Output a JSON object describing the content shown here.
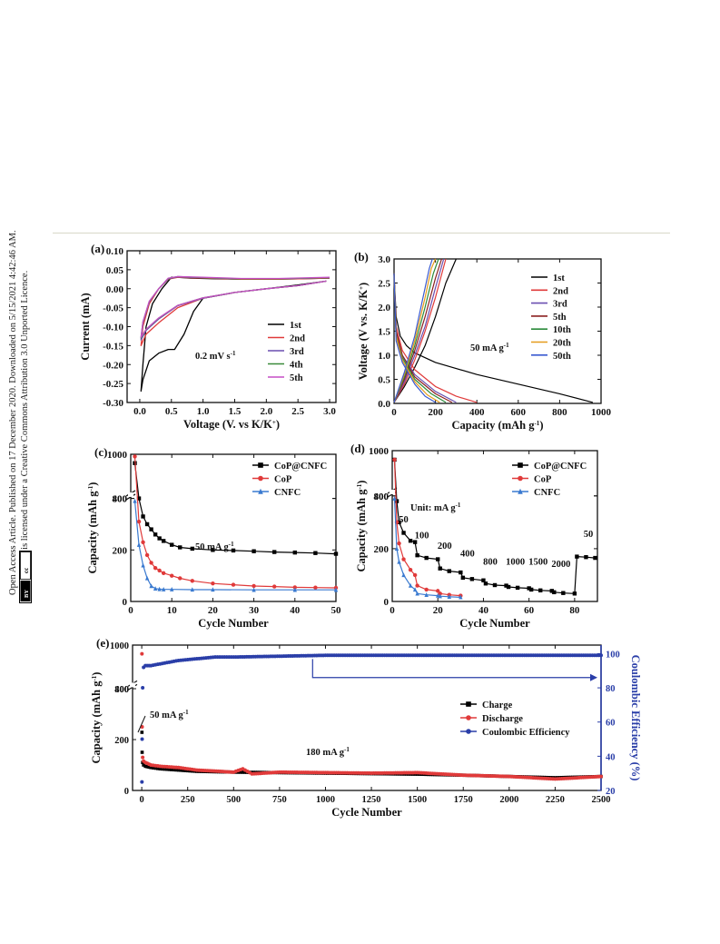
{
  "notice": {
    "line1": "Open Access Article. Published on 17 December 2020. Downloaded on 5/15/2021 4:42:46 AM.",
    "line2": "This article is licensed under a Creative Commons Attribution 3.0 Unported Licence.",
    "cc_badge": "cc",
    "by_badge": "BY"
  },
  "chart_data": [
    {
      "panel": "(a)",
      "type": "line",
      "xlabel": "Voltage (V. vs K/K+)",
      "ylabel": "Current (mA)",
      "xlim": [
        -0.2,
        3.1
      ],
      "ylim": [
        -0.3,
        0.1
      ],
      "xticks": [
        "0.0",
        "0.5",
        "1.0",
        "1.5",
        "2.0",
        "2.5",
        "3.0"
      ],
      "yticks": [
        "0.10",
        "0.05",
        "0.00",
        "-0.05",
        "-0.10",
        "-0.15",
        "-0.20",
        "-0.25",
        "-0.30"
      ],
      "annotation": "0.2 mV s-1",
      "legend": "right",
      "series": [
        {
          "name": "1st",
          "color": "#000000",
          "x": [
            2.95,
            2.5,
            2.0,
            1.5,
            1.0,
            0.85,
            0.7,
            0.55,
            0.45,
            0.3,
            0.15,
            0.05,
            0.02,
            0.05,
            0.1,
            0.2,
            0.35,
            0.5,
            0.6,
            0.8,
            1.2,
            1.8,
            2.5,
            3.0
          ],
          "y": [
            0.02,
            0.01,
            0.0,
            -0.01,
            -0.025,
            -0.06,
            -0.12,
            -0.16,
            -0.16,
            -0.17,
            -0.19,
            -0.24,
            -0.27,
            -0.2,
            -0.1,
            -0.04,
            0.0,
            0.03,
            0.03,
            0.028,
            0.026,
            0.025,
            0.026,
            0.028
          ]
        },
        {
          "name": "2nd",
          "color": "#e03a3a",
          "x": [
            2.95,
            2.5,
            2.0,
            1.5,
            1.0,
            0.6,
            0.3,
            0.1,
            0.02,
            0.05,
            0.15,
            0.3,
            0.45,
            0.6,
            1.0,
            1.6,
            2.2,
            3.0
          ],
          "y": [
            0.02,
            0.008,
            0.0,
            -0.01,
            -0.025,
            -0.05,
            -0.09,
            -0.12,
            -0.15,
            -0.1,
            -0.04,
            0.0,
            0.025,
            0.03,
            0.028,
            0.025,
            0.025,
            0.028
          ]
        },
        {
          "name": "3rd",
          "color": "#6a4fb0",
          "x": [
            2.95,
            2.5,
            2.0,
            1.5,
            1.0,
            0.6,
            0.3,
            0.1,
            0.02,
            0.05,
            0.15,
            0.3,
            0.45,
            0.6,
            1.0,
            1.6,
            2.2,
            3.0
          ],
          "y": [
            0.02,
            0.008,
            0.0,
            -0.01,
            -0.025,
            -0.045,
            -0.08,
            -0.11,
            -0.135,
            -0.09,
            -0.035,
            0.0,
            0.026,
            0.031,
            0.029,
            0.026,
            0.026,
            0.029
          ]
        },
        {
          "name": "4th",
          "color": "#3a8a3a",
          "x": [
            2.95,
            2.5,
            2.0,
            1.5,
            1.0,
            0.6,
            0.3,
            0.1,
            0.02,
            0.05,
            0.15,
            0.3,
            0.45,
            0.6,
            1.0,
            1.6,
            2.2,
            3.0
          ],
          "y": [
            0.02,
            0.008,
            0.0,
            -0.01,
            -0.024,
            -0.044,
            -0.078,
            -0.108,
            -0.13,
            -0.088,
            -0.034,
            0.0,
            0.027,
            0.032,
            0.029,
            0.026,
            0.026,
            0.029
          ]
        },
        {
          "name": "5th",
          "color": "#c54fc5",
          "x": [
            2.95,
            2.5,
            2.0,
            1.5,
            1.0,
            0.6,
            0.3,
            0.1,
            0.02,
            0.05,
            0.15,
            0.3,
            0.45,
            0.6,
            1.0,
            1.6,
            2.2,
            3.0
          ],
          "y": [
            0.02,
            0.008,
            0.0,
            -0.01,
            -0.024,
            -0.044,
            -0.077,
            -0.107,
            -0.128,
            -0.087,
            -0.033,
            0.0,
            0.028,
            0.032,
            0.03,
            0.027,
            0.027,
            0.03
          ]
        }
      ]
    },
    {
      "panel": "(b)",
      "type": "line",
      "xlabel": "Capacity (mAh g-1)",
      "ylabel": "Voltage (V vs. K/K+)",
      "xlim": [
        0,
        1000
      ],
      "ylim": [
        0,
        3.0
      ],
      "xticks": [
        "0",
        "200",
        "400",
        "600",
        "800",
        "1000"
      ],
      "yticks": [
        "0.0",
        "0.5",
        "1.0",
        "1.5",
        "2.0",
        "2.5",
        "3.0"
      ],
      "annotation": "50 mA g-1",
      "legend": "right",
      "series": [
        {
          "name": "1st",
          "color": "#000000",
          "discharge_x": [
            0,
            10,
            30,
            60,
            100,
            200,
            400,
            600,
            800,
            960
          ],
          "discharge_y": [
            2.7,
            1.8,
            1.4,
            1.2,
            1.05,
            0.85,
            0.6,
            0.4,
            0.2,
            0.02
          ],
          "charge_x": [
            0,
            50,
            100,
            150,
            200,
            250,
            300
          ],
          "charge_y": [
            0.02,
            0.35,
            0.75,
            1.2,
            1.8,
            2.5,
            3.0
          ]
        },
        {
          "name": "2nd",
          "color": "#e03a3a",
          "discharge_x": [
            0,
            10,
            40,
            100,
            200,
            300,
            400
          ],
          "discharge_y": [
            2.7,
            1.6,
            1.1,
            0.7,
            0.35,
            0.15,
            0.02
          ],
          "charge_x": [
            0,
            50,
            100,
            150,
            200,
            250
          ],
          "charge_y": [
            0.02,
            0.4,
            0.9,
            1.5,
            2.2,
            3.0
          ]
        },
        {
          "name": "3rd",
          "color": "#6a4fb0",
          "discharge_x": [
            0,
            10,
            40,
            100,
            200,
            300
          ],
          "discharge_y": [
            2.7,
            1.5,
            1.0,
            0.6,
            0.25,
            0.02
          ],
          "charge_x": [
            0,
            50,
            100,
            150,
            200,
            240
          ],
          "charge_y": [
            0.02,
            0.45,
            1.0,
            1.6,
            2.4,
            3.0
          ]
        },
        {
          "name": "5th",
          "color": "#8b2020",
          "discharge_x": [
            0,
            10,
            40,
            100,
            200,
            280
          ],
          "discharge_y": [
            2.7,
            1.5,
            1.0,
            0.55,
            0.2,
            0.02
          ],
          "charge_x": [
            0,
            50,
            100,
            150,
            200,
            230
          ],
          "charge_y": [
            0.02,
            0.5,
            1.1,
            1.8,
            2.6,
            3.0
          ]
        },
        {
          "name": "10th",
          "color": "#2a8a3a",
          "discharge_x": [
            0,
            10,
            40,
            100,
            180,
            250
          ],
          "discharge_y": [
            2.7,
            1.4,
            0.95,
            0.5,
            0.2,
            0.02
          ],
          "charge_x": [
            0,
            50,
            100,
            150,
            190,
            215
          ],
          "charge_y": [
            0.02,
            0.55,
            1.2,
            2.0,
            2.7,
            3.0
          ]
        },
        {
          "name": "20th",
          "color": "#e59a1a",
          "discharge_x": [
            0,
            10,
            40,
            100,
            160,
            220
          ],
          "discharge_y": [
            2.7,
            1.4,
            0.9,
            0.45,
            0.18,
            0.02
          ],
          "charge_x": [
            0,
            50,
            100,
            150,
            180,
            200
          ],
          "charge_y": [
            0.02,
            0.6,
            1.3,
            2.2,
            2.8,
            3.0
          ]
        },
        {
          "name": "50th",
          "color": "#3a5ad0",
          "discharge_x": [
            0,
            10,
            40,
            100,
            150,
            200
          ],
          "discharge_y": [
            2.7,
            1.3,
            0.85,
            0.4,
            0.15,
            0.02
          ],
          "charge_x": [
            0,
            50,
            100,
            140,
            170,
            185
          ],
          "charge_y": [
            0.02,
            0.65,
            1.4,
            2.2,
            2.8,
            3.0
          ]
        }
      ]
    },
    {
      "panel": "(c)",
      "type": "scatter",
      "xlabel": "Cycle Number",
      "ylabel": "Capacity (mAh g-1)",
      "xlim": [
        0,
        50
      ],
      "ylim": [
        0,
        1000
      ],
      "xticks": [
        "0",
        "10",
        "20",
        "30",
        "40",
        "50"
      ],
      "yticks": [
        "0",
        "200",
        "400",
        "800",
        "1000"
      ],
      "annotation": "50 mA g-1",
      "legend": "top-right",
      "series": [
        {
          "name": "CoP@CNFC",
          "color": "#000000",
          "x": [
            1,
            2,
            3,
            4,
            5,
            6,
            7,
            8,
            10,
            12,
            15,
            20,
            25,
            30,
            35,
            40,
            45,
            50
          ],
          "y": [
            960,
            400,
            330,
            300,
            280,
            260,
            245,
            235,
            220,
            210,
            205,
            200,
            198,
            195,
            192,
            190,
            188,
            185
          ]
        },
        {
          "name": "CoP",
          "color": "#e03a3a",
          "x": [
            1,
            2,
            3,
            4,
            5,
            6,
            7,
            8,
            10,
            12,
            15,
            20,
            25,
            30,
            35,
            40,
            45,
            50
          ],
          "y": [
            990,
            310,
            230,
            180,
            150,
            130,
            120,
            110,
            100,
            90,
            80,
            70,
            65,
            60,
            58,
            55,
            54,
            53
          ]
        },
        {
          "name": "CNFC",
          "color": "#3a7ad0",
          "x": [
            1,
            2,
            3,
            4,
            5,
            6,
            7,
            8,
            10,
            15,
            20,
            30,
            40,
            50
          ],
          "y": [
            390,
            220,
            140,
            90,
            60,
            50,
            48,
            47,
            47,
            46,
            46,
            45,
            45,
            45
          ]
        }
      ]
    },
    {
      "panel": "(d)",
      "type": "scatter",
      "xlabel": "Cycle Number",
      "ylabel": "Capacity (mAh g-1)",
      "xlim": [
        0,
        90
      ],
      "ylim": [
        0,
        1000
      ],
      "xticks": [
        "0",
        "20",
        "40",
        "60",
        "80"
      ],
      "yticks": [
        "0",
        "200",
        "400",
        "800",
        "1000"
      ],
      "annotation": "Unit: mA g-1",
      "rate_labels": [
        "50",
        "100",
        "200",
        "400",
        "800",
        "1000",
        "1500",
        "2000",
        "50"
      ],
      "legend": "top-right",
      "series": [
        {
          "name": "CoP@CNFC",
          "color": "#000000",
          "x": [
            1,
            2,
            3,
            5,
            8,
            10,
            11,
            15,
            20,
            21,
            25,
            30,
            31,
            35,
            40,
            41,
            45,
            50,
            51,
            55,
            60,
            61,
            65,
            70,
            71,
            75,
            80,
            81,
            85,
            89
          ],
          "y": [
            960,
            380,
            300,
            260,
            230,
            225,
            175,
            165,
            160,
            125,
            115,
            110,
            90,
            85,
            80,
            68,
            62,
            60,
            55,
            52,
            50,
            45,
            42,
            40,
            35,
            32,
            30,
            170,
            168,
            165
          ]
        },
        {
          "name": "CoP",
          "color": "#e03a3a",
          "x": [
            1,
            2,
            3,
            5,
            8,
            10,
            11,
            15,
            20,
            21,
            25,
            30
          ],
          "y": [
            960,
            300,
            220,
            160,
            120,
            100,
            60,
            45,
            40,
            30,
            25,
            22
          ]
        },
        {
          "name": "CNFC",
          "color": "#3a7ad0",
          "x": [
            1,
            2,
            3,
            5,
            8,
            10,
            11,
            15,
            20,
            21,
            25,
            30
          ],
          "y": [
            390,
            200,
            150,
            100,
            60,
            45,
            30,
            25,
            22,
            20,
            18,
            16
          ]
        }
      ]
    },
    {
      "panel": "(e)",
      "type": "scatter",
      "xlabel": "Cycle Number",
      "ylabel": "Capacity (mAh g-1)",
      "ylabel_right": "Coulombic Efficiency (%)",
      "xlim": [
        -50,
        2500
      ],
      "ylim": [
        0,
        1000
      ],
      "ylim_right": [
        20,
        105
      ],
      "xticks": [
        "0",
        "250",
        "500",
        "750",
        "1000",
        "1250",
        "1500",
        "1750",
        "2000",
        "2250",
        "2500"
      ],
      "yticks": [
        "0",
        "200",
        "400",
        "800",
        "1000"
      ],
      "yticks_right": [
        "20",
        "40",
        "60",
        "80",
        "100"
      ],
      "annotations": [
        "50 mA g-1",
        "180 mA g-1"
      ],
      "legend": "right",
      "series": [
        {
          "name": "Charge",
          "color": "#000000",
          "x": [
            1,
            2,
            5,
            10,
            20,
            50,
            100,
            200,
            300,
            500,
            750,
            1000,
            1250,
            1500,
            1750,
            2000,
            2250,
            2500
          ],
          "y": [
            600,
            150,
            110,
            100,
            95,
            90,
            85,
            80,
            75,
            72,
            70,
            68,
            66,
            64,
            60,
            55,
            50,
            55
          ]
        },
        {
          "name": "Discharge",
          "color": "#e03a3a",
          "x": [
            1,
            2,
            5,
            10,
            20,
            50,
            100,
            200,
            300,
            500,
            550,
            600,
            750,
            1000,
            1250,
            1500,
            1750,
            2000,
            2250,
            2500
          ],
          "y": [
            960,
            250,
            130,
            115,
            110,
            100,
            95,
            90,
            80,
            72,
            85,
            65,
            72,
            70,
            68,
            70,
            60,
            55,
            45,
            55
          ]
        },
        {
          "name": "Coulombic Efficiency",
          "color": "#2a3ea8",
          "x": [
            1,
            2,
            5,
            10,
            20,
            50,
            100,
            200,
            300,
            400,
            500,
            750,
            1000,
            1250,
            1500,
            1750,
            2000,
            2250,
            2500
          ],
          "y": [
            25,
            50,
            80,
            92,
            93,
            93,
            94,
            96,
            97,
            98,
            98,
            98.5,
            99,
            99,
            99,
            99,
            99,
            99,
            99
          ]
        }
      ]
    }
  ]
}
